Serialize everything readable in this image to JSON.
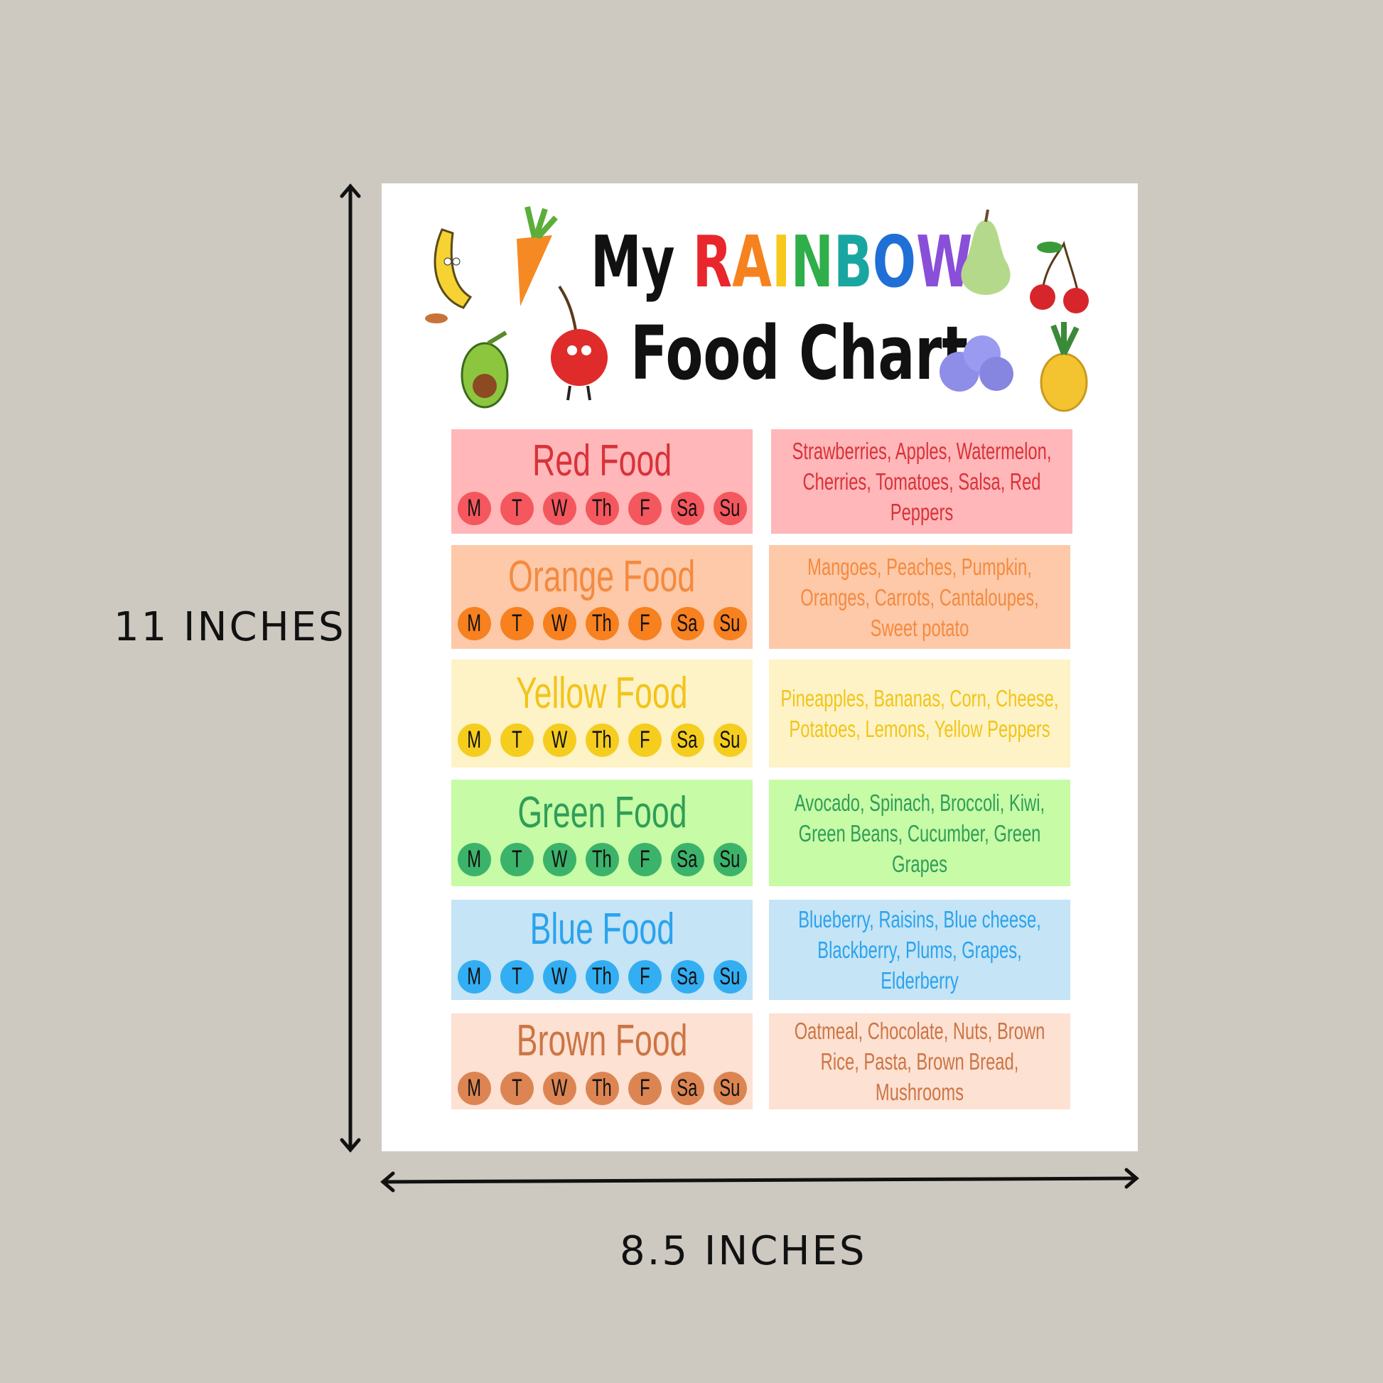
{
  "dimensions": {
    "height_label": "11 INCHES",
    "width_label": "8.5 INCHES"
  },
  "title": {
    "line1_prefix": "My",
    "rainbow_letters": [
      {
        "char": "R",
        "color": "#e8262c"
      },
      {
        "char": "A",
        "color": "#f5821f"
      },
      {
        "char": "I",
        "color": "#f7c81e"
      },
      {
        "char": "N",
        "color": "#2fae4a"
      },
      {
        "char": "B",
        "color": "#1aa6a0"
      },
      {
        "char": "O",
        "color": "#1f6fd6"
      },
      {
        "char": "W",
        "color": "#8a4fd8"
      }
    ],
    "line2": "Food Chart"
  },
  "days": [
    "M",
    "T",
    "W",
    "Th",
    "F",
    "Sa",
    "Su"
  ],
  "rows": [
    {
      "heading": "Red Food",
      "foods": "Strawberries, Apples, Watermelon, Cherries, Tomatoes, Salsa, Red Peppers",
      "bg": "#ffb7b9",
      "text": "#d9323a",
      "circle": "#f4575d"
    },
    {
      "heading": "Orange Food",
      "foods": "Mangoes, Peaches, Pumpkin, Oranges, Carrots, Cantaloupes, Sweet potato",
      "bg": "#fdc9a8",
      "text": "#f48a3f",
      "circle": "#f7801f"
    },
    {
      "heading": "Yellow Food",
      "foods": "Pineapples, Bananas, Corn, Cheese, Potatoes, Lemons, Yellow Peppers",
      "bg": "#fdf3c6",
      "text": "#f2c41a",
      "circle": "#f5cd1f"
    },
    {
      "heading": "Green Food",
      "foods": "Avocado, Spinach, Broccoli, Kiwi, Green Beans, Cucumber, Green Grapes",
      "bg": "#c7fba6",
      "text": "#2f9e58",
      "circle": "#3cb36a"
    },
    {
      "heading": "Blue Food",
      "foods": "Blueberry, Raisins, Blue cheese, Blackberry, Plums, Grapes, Elderberry",
      "bg": "#c5e4f5",
      "text": "#2aa3ee",
      "circle": "#33aef2"
    },
    {
      "heading": "Brown Food",
      "foods": "Oatmeal, Chocolate, Nuts, Brown Rice, Pasta, Brown Bread, Mushrooms",
      "bg": "#fde1d3",
      "text": "#cc7544",
      "circle": "#dc8552"
    }
  ],
  "illustrations": [
    "banana-icon",
    "carrot-icon",
    "avocado-icon",
    "cherry-character-icon",
    "pear-icon",
    "cherries-icon",
    "blueberries-icon",
    "pineapple-icon"
  ]
}
